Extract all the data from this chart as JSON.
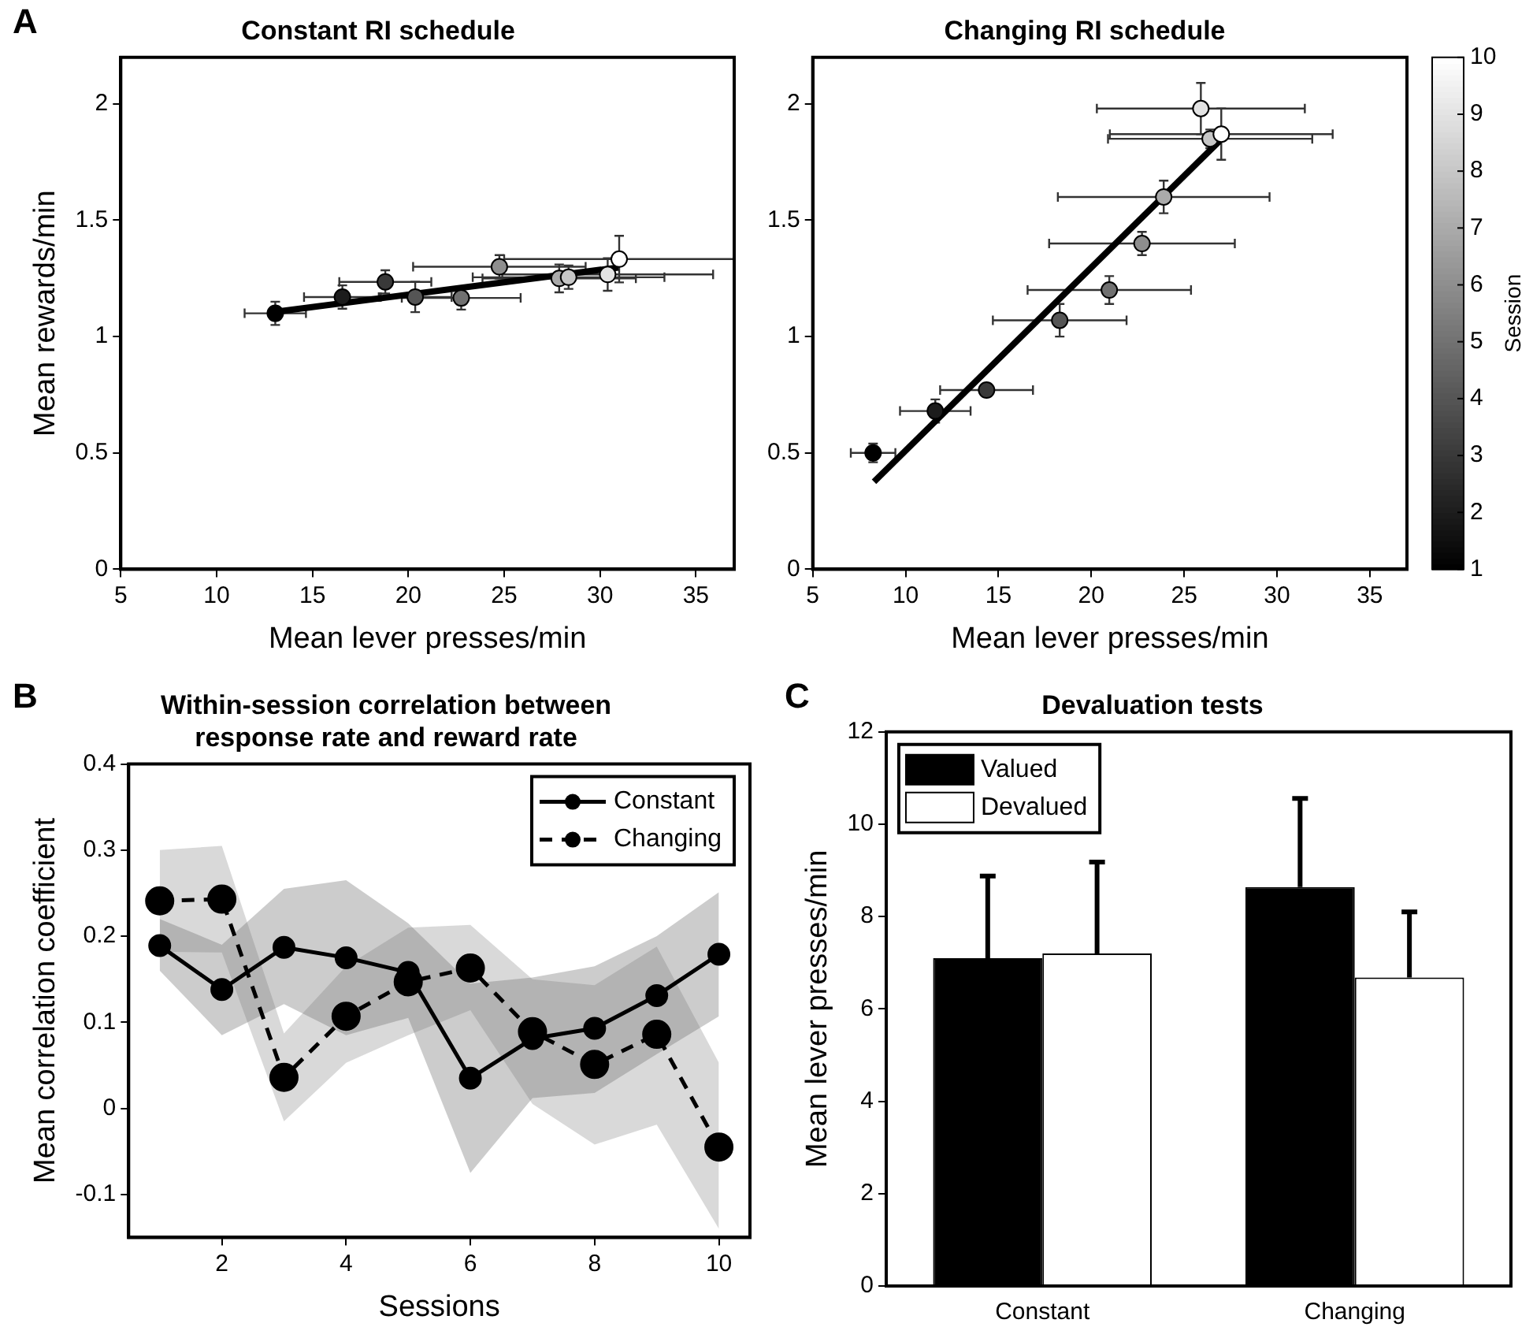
{
  "chart_data": [
    {
      "type": "scatter",
      "title": "Constant RI schedule",
      "xlabel": "Mean lever presses/min",
      "ylabel": "Mean rewards/min",
      "annotations": [
        "A"
      ],
      "xlim": [
        5,
        37
      ],
      "xticks": [
        5,
        10,
        15,
        20,
        25,
        30,
        35
      ],
      "ylim": [
        0,
        2.2
      ],
      "yticks": [
        0,
        0.5,
        1,
        1.5,
        2
      ],
      "grid": false,
      "marker": "circle",
      "series": [
        {
          "type": "scatter",
          "x": [
            13.06,
            16.56,
            18.8,
            20.36,
            22.76,
            24.75,
            27.87,
            28.36,
            30.4,
            31.0
          ],
          "values": [
            1.1,
            1.17,
            1.235,
            1.17,
            1.166,
            1.3,
            1.25,
            1.255,
            1.267,
            1.333
          ],
          "errors": [
            0.05,
            0.05,
            0.05,
            0.065,
            0.05,
            0.05,
            0.06,
            0.05,
            0.07,
            0.1
          ],
          "xerrors": [
            1.6,
            2,
            2.4,
            1.9,
            3.1,
            4.5,
            4,
            5,
            5.5,
            6
          ],
          "colors": [
            "#000000",
            "#1c1c1c",
            "#393939",
            "#555555",
            "#717171",
            "#8e8e8e",
            "#aaaaaa",
            "#c6c6c6",
            "#e3e3e3",
            "#ffffff"
          ]
        },
        {
          "type": "line",
          "marker": "none",
          "x": [
            13.06,
            30.96
          ],
          "values": [
            1.106,
            1.297
          ],
          "color": "#000000"
        }
      ]
    },
    {
      "type": "scatter",
      "title": "Changing RI schedule",
      "xlabel": "Mean lever presses/min",
      "xlim": [
        5,
        37
      ],
      "xticks": [
        5,
        10,
        15,
        20,
        25,
        30,
        35
      ],
      "ylim": [
        0,
        2.2
      ],
      "yticks": [
        0,
        0.5,
        1,
        1.5,
        2
      ],
      "grid": false,
      "marker": "circle",
      "clabel": "Session",
      "clim": [
        1,
        10
      ],
      "cticks": [
        1,
        2,
        3,
        4,
        5,
        6,
        7,
        8,
        9,
        10
      ],
      "series": [
        {
          "type": "scatter",
          "x": [
            8.25,
            11.6,
            14.36,
            18.3,
            20.97,
            22.73,
            23.9,
            26.4,
            25.9,
            27.0
          ],
          "values": [
            0.5,
            0.68,
            0.77,
            1.07,
            1.2,
            1.4,
            1.6,
            1.85,
            1.98,
            1.87
          ],
          "errors": [
            0.04,
            0.05,
            null,
            0.07,
            0.06,
            0.05,
            0.07,
            0.04,
            0.11,
            0.11
          ],
          "xerrors": [
            1.2,
            1.9,
            2.5,
            3.6,
            4.4,
            5,
            5.7,
            5.5,
            5.6,
            6
          ],
          "colors": [
            "#000000",
            "#1c1c1c",
            "#393939",
            "#555555",
            "#717171",
            "#8e8e8e",
            "#aaaaaa",
            "#c6c6c6",
            "#e3e3e3",
            "#ffffff"
          ]
        },
        {
          "type": "line",
          "marker": "none",
          "x": [
            8.3,
            26.9
          ],
          "values": [
            0.376,
            1.84
          ],
          "color": "#000000"
        }
      ]
    },
    {
      "type": "line",
      "title": "Within-session correlation between response rate and reward rate",
      "xlabel": "Sessions",
      "ylabel": "Mean correlation coefficient",
      "annotations": [
        "B"
      ],
      "xlim": [
        0.5,
        10.5
      ],
      "xticks": [
        2,
        4,
        6,
        8,
        10
      ],
      "ylim": [
        -0.15,
        0.4
      ],
      "yticks": [
        -0.1,
        0,
        0.1,
        0.2,
        0.3,
        0.4
      ],
      "grid": false,
      "marker": "circle",
      "legend": "top right",
      "x": [
        1,
        2,
        3,
        4,
        5,
        6,
        7,
        8,
        9,
        10
      ],
      "series": [
        {
          "name": "Constant",
          "color": "#000000",
          "line_style": "solid",
          "values": [
            0.189,
            0.138,
            0.187,
            0.175,
            0.158,
            0.035,
            0.081,
            0.093,
            0.131,
            0.179
          ],
          "lower": [
            0.16,
            0.085,
            0.121,
            0.085,
            0.105,
            -0.075,
            0.012,
            0.018,
            0.063,
            0.107
          ],
          "upper": [
            0.22,
            0.19,
            0.255,
            0.265,
            0.215,
            0.145,
            0.152,
            0.165,
            0.2,
            0.251
          ]
        },
        {
          "name": "Changing",
          "color": "#000000",
          "line_style": "dashed",
          "values": [
            0.241,
            0.243,
            0.036,
            0.107,
            0.147,
            0.163,
            0.089,
            0.051,
            0.086,
            -0.045
          ],
          "lower": [
            0.182,
            0.181,
            -0.015,
            0.053,
            0.085,
            0.114,
            0.005,
            -0.042,
            -0.019,
            -0.14
          ],
          "upper": [
            0.3,
            0.305,
            0.087,
            0.165,
            0.21,
            0.213,
            0.15,
            0.143,
            0.188,
            0.053
          ]
        }
      ]
    },
    {
      "type": "bar",
      "title": "Devaluation tests",
      "ylabel": "Mean lever presses/min",
      "annotations": [
        "C"
      ],
      "categories": [
        "Constant",
        "Changing"
      ],
      "ylim": [
        0,
        12
      ],
      "yticks": [
        0,
        2,
        4,
        6,
        8,
        10,
        12
      ],
      "grid": false,
      "legend": "top left",
      "series": [
        {
          "name": "Valued",
          "color": "#000000",
          "values": [
            7.1,
            8.64
          ],
          "errors": [
            [
              7.1,
              8.88
            ],
            [
              8.64,
              10.56
            ]
          ]
        },
        {
          "name": "Devalued",
          "color": "#ffffff",
          "values": [
            7.2,
            6.68
          ],
          "errors": [
            [
              7.2,
              9.18
            ],
            [
              6.68,
              8.1
            ]
          ]
        }
      ]
    }
  ]
}
